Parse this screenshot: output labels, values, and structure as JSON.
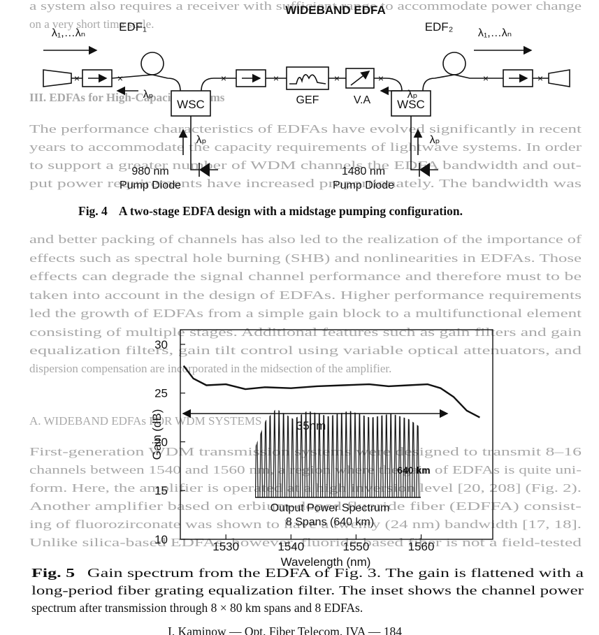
{
  "page_text": {
    "top_lines": [
      "a system also requires a receiver with sufficient range to accommodate power change",
      "on a very short time scale."
    ],
    "section_heading": "III. EDFAs for High-Capacity Systems",
    "paragraph_1": [
      "The performance characteristics of EDFAs have evolved significantly in recent",
      "years to accommodate the capacity requirements of lightwave systems. In order",
      "to support a greater number of WDM channels the EDFA bandwidth and out-",
      "put power requirements have increased proportionately. The bandwidth was",
      "and better packing of channels has also led to the realization of the importance of",
      "effects such as spectral hole burning (SHB) and nonlinearities in EDFAs. Those",
      "effects can degrade the signal channel performance and therefore must to be",
      "taken into account in the design of EDFAs. Higher performance requirements",
      "led the growth of EDFAs from a simple gain block to a multifunctional element",
      "consisting of multiple stages. Additional features such as gain filters and gain",
      "equalization filters, gain tilt control using variable optical attenuators, and",
      "dispersion compensation are incorporated in the midsection of the amplifier."
    ],
    "subsection_heading": "A. WIDEBAND EDFAs FOR WDM SYSTEMS",
    "paragraph_2": [
      "First-generation WDM transmission systems were designed to transmit 8–16",
      "channels between 1540 and 1560 nm, a region where the gain of EDFAs is quite uni-",
      "form. Here, the amplifier is operated at a high inversion level [20, 208] (Fig. 2).",
      "Another amplifier based on erbium-doped fluoride fiber (EDFFA) consist-",
      "ing of fluorozirconate was shown to have a twenty (24 nm) bandwidth [17, 18].",
      "Unlike silica-based EDFAs, however, fluoride-based fiber is not a field-tested"
    ]
  },
  "figure4": {
    "title": "WIDEBAND EDFA",
    "input_label": "λ₁,…λₙ",
    "output_label": "λ₁,…λₙ",
    "edf1": "EDF₁",
    "edf2": "EDF₂",
    "pump_wavelength_labels": [
      "λₚ",
      "λₚ",
      "λₚ",
      "λₚ"
    ],
    "wsc_left": "WSC",
    "wsc_right": "WSC",
    "gef": "GEF",
    "va": "V.A",
    "pump_left": [
      "980 nm",
      "Pump Diode"
    ],
    "pump_right": [
      "1480 nm",
      "Pump Diode"
    ],
    "caption_label": "Fig. 4",
    "caption_text": "A two-stage EDFA design with a midstage pumping configuration."
  },
  "figure5": {
    "type": "line",
    "x": [
      1523.5,
      1525,
      1527,
      1530,
      1533,
      1536,
      1540,
      1544,
      1548,
      1552,
      1555,
      1558,
      1561,
      1563,
      1565,
      1567,
      1569
    ],
    "values": [
      27.8,
      26.5,
      25.8,
      25.9,
      25.4,
      25.6,
      25.5,
      25.7,
      25.8,
      25.9,
      25.7,
      25.8,
      25.9,
      25.5,
      24.6,
      23.2,
      22.5
    ],
    "xlim": [
      1523,
      1571
    ],
    "ylim": [
      10,
      31.5
    ],
    "xticks": [
      1530,
      1540,
      1550,
      1560
    ],
    "yticks": [
      10,
      15,
      20,
      25,
      30
    ],
    "xlabel": "Wavelength (nm)",
    "ylabel": "Gain (dB)",
    "bandwidth_label": "35nm",
    "inset_distance": "640 km",
    "inset_title": [
      "Output Power Spectrum",
      "8 Spans (640 km)"
    ],
    "caption_label": "Fig. 5",
    "caption_lines": [
      "Gain spectrum from the EDFA of Fig. 3. The gain is flattened with a",
      "long-period fiber grating equalization filter. The inset shows the channel power",
      "spectrum after transmission through 8 × 80 km spans and 8 EDFAs."
    ]
  },
  "footer": "I. Kaminow — Opt. Fiber Telecom. IVA — 184"
}
